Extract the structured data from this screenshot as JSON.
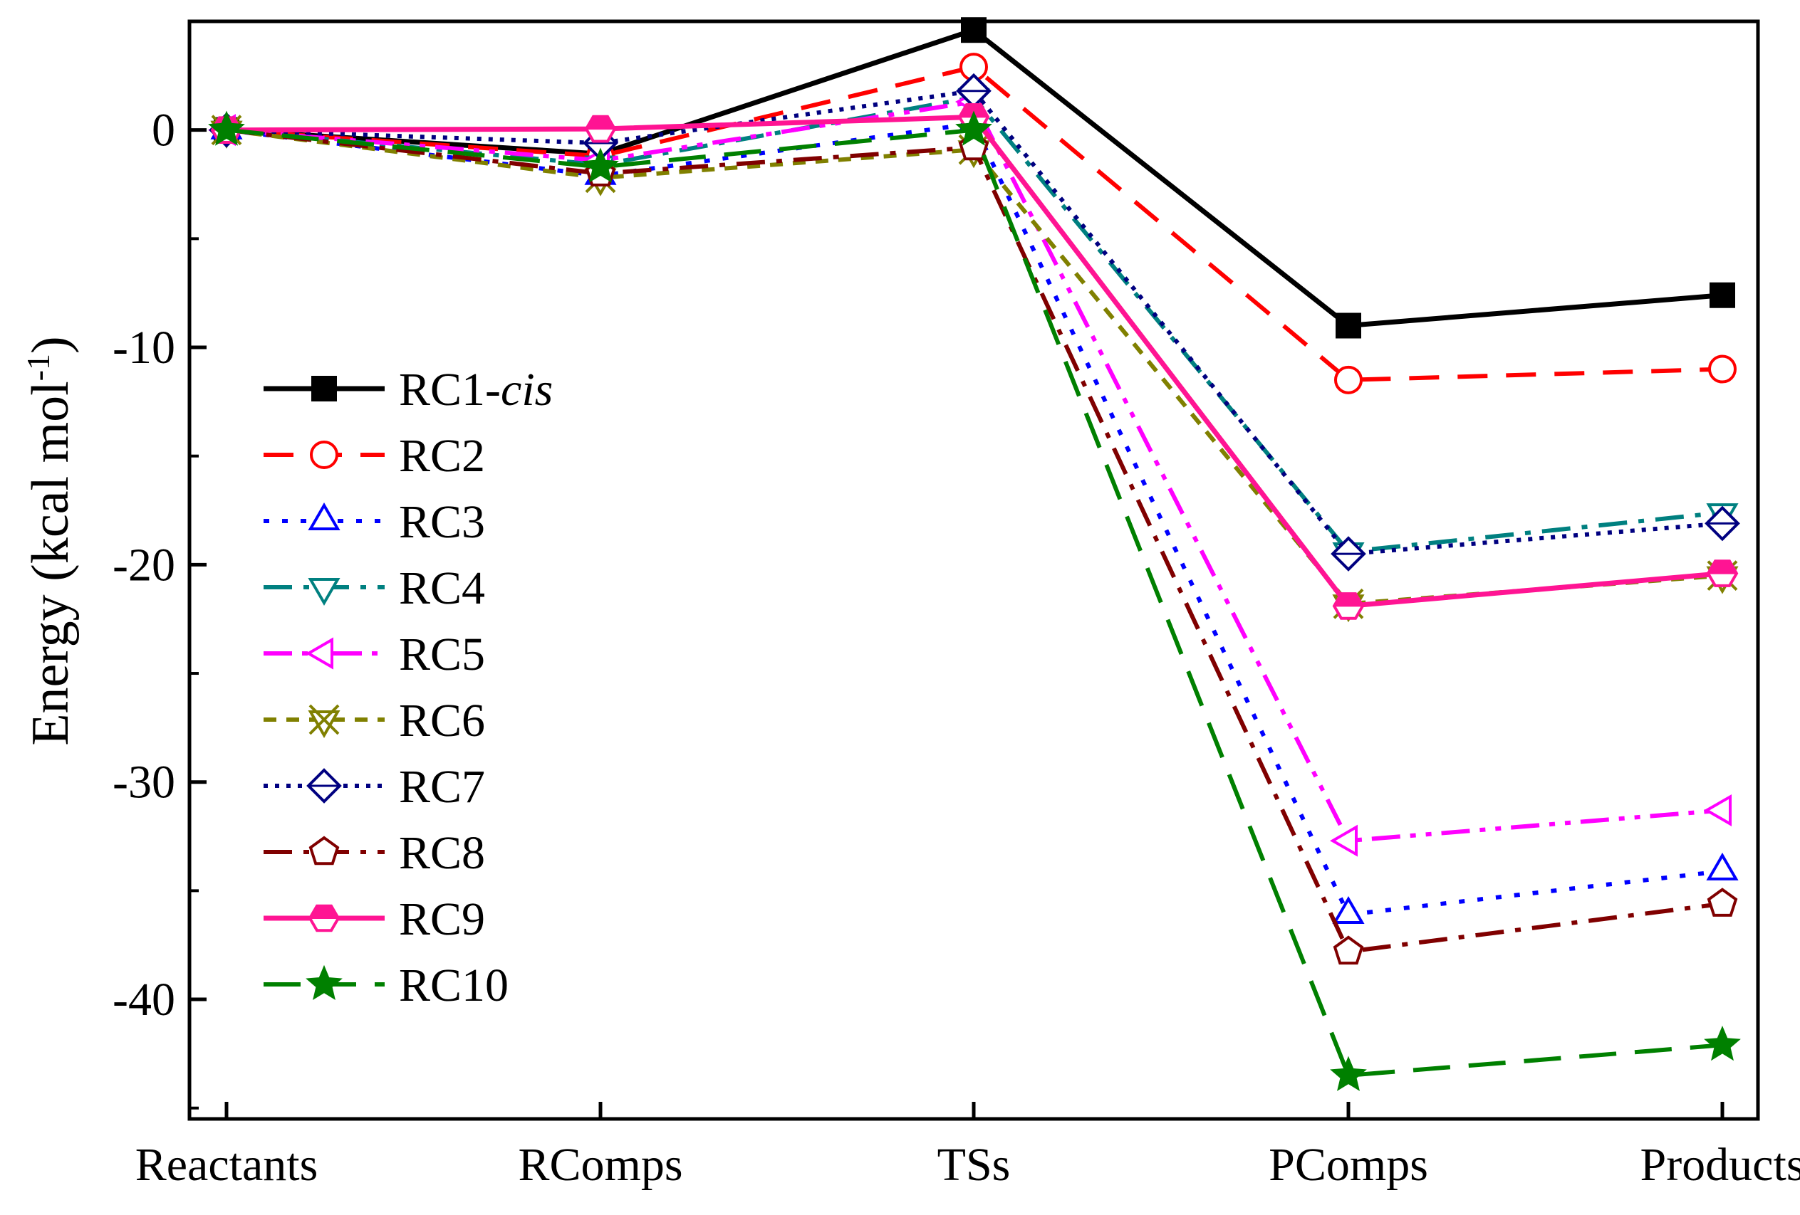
{
  "chart_data": {
    "type": "line",
    "title": "",
    "xlabel": "",
    "ylabel": "Energy (kcal mol",
    "ylabel_superscript": "-1",
    "ylabel_suffix": ")",
    "categories": [
      "Reactants",
      "RComps",
      "TSs",
      "PComps",
      "Products"
    ],
    "ylim": [
      -45.5,
      5
    ],
    "yticks": [
      0,
      -10,
      -20,
      -30,
      -40
    ],
    "ytick_labels": [
      "0",
      "-10",
      "-20",
      "-30",
      "-40"
    ],
    "grid": false,
    "legend_position": "center-left",
    "series": [
      {
        "name": "RC1-",
        "name_italic": "cis",
        "values": [
          0,
          -1.1,
          4.6,
          -9.0,
          -7.6
        ],
        "color": "#000000",
        "dash": "solid",
        "marker": "square-filled"
      },
      {
        "name": "RC2",
        "values": [
          0,
          -1.2,
          2.9,
          -11.5,
          -11.0
        ],
        "color": "#ff0000",
        "dash": "dash",
        "marker": "circle-open"
      },
      {
        "name": "RC3",
        "values": [
          0,
          -2.1,
          0.3,
          -36.1,
          -34.1
        ],
        "color": "#0000ff",
        "dash": "dot",
        "marker": "triangle-up-open"
      },
      {
        "name": "RC4",
        "values": [
          0,
          -1.6,
          1.5,
          -19.4,
          -17.6
        ],
        "color": "#008080",
        "dash": "dashdot",
        "marker": "triangle-down-open"
      },
      {
        "name": "RC5",
        "values": [
          0,
          -1.4,
          1.3,
          -32.7,
          -31.3
        ],
        "color": "#ff00ff",
        "dash": "dashdotdot",
        "marker": "triangle-left-open"
      },
      {
        "name": "RC6",
        "values": [
          0,
          -2.2,
          -0.9,
          -21.8,
          -20.5
        ],
        "color": "#808000",
        "dash": "shortdash",
        "marker": "x-triangle-open"
      },
      {
        "name": "RC7",
        "values": [
          0,
          -0.6,
          1.8,
          -19.5,
          -18.1
        ],
        "color": "#000080",
        "dash": "shortdot",
        "marker": "diamond-open"
      },
      {
        "name": "RC8",
        "values": [
          0,
          -2.0,
          -0.8,
          -37.8,
          -35.6
        ],
        "color": "#800000",
        "dash": "dashdot",
        "marker": "pentagon-open"
      },
      {
        "name": "RC9",
        "values": [
          0,
          0.05,
          0.6,
          -21.9,
          -20.4
        ],
        "color": "#ff1493",
        "dash": "solid",
        "marker": "hexagon-half"
      },
      {
        "name": "RC10",
        "values": [
          0,
          -1.7,
          0.0,
          -43.5,
          -42.1
        ],
        "color": "#008000",
        "dash": "longdash",
        "marker": "star-open"
      }
    ]
  }
}
